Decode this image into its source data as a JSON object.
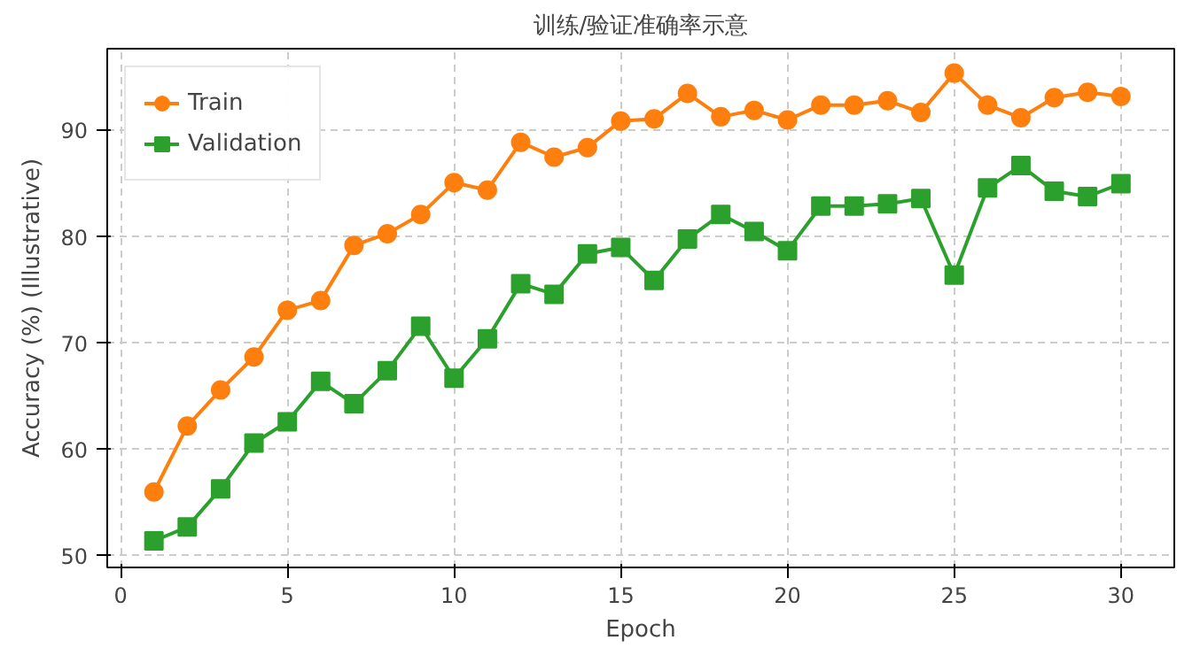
{
  "chart_data": {
    "type": "line",
    "title": "训练/验证准确率示意",
    "xlabel": "Epoch",
    "ylabel": "Accuracy (%) (Illustrative)",
    "x": [
      1,
      2,
      3,
      4,
      5,
      6,
      7,
      8,
      9,
      10,
      11,
      12,
      13,
      14,
      15,
      16,
      17,
      18,
      19,
      20,
      21,
      22,
      23,
      24,
      25,
      26,
      27,
      28,
      29,
      30
    ],
    "series": [
      {
        "name": "Train",
        "color": "#ff7f0e",
        "marker": "circle",
        "values": [
          56.0,
          62.2,
          65.6,
          68.7,
          73.1,
          74.0,
          79.2,
          80.3,
          82.1,
          85.1,
          84.4,
          88.9,
          87.5,
          88.4,
          90.9,
          91.1,
          93.5,
          91.3,
          91.9,
          91.0,
          92.4,
          92.4,
          92.8,
          91.7,
          95.4,
          92.4,
          91.2,
          93.1,
          93.6,
          93.2
        ]
      },
      {
        "name": "Validation",
        "color": "#2ca02c",
        "marker": "square",
        "values": [
          51.4,
          52.7,
          56.3,
          60.6,
          62.6,
          66.4,
          64.3,
          67.4,
          71.6,
          66.7,
          70.4,
          75.6,
          74.6,
          78.4,
          79.0,
          75.9,
          79.8,
          82.1,
          80.5,
          78.7,
          82.9,
          82.9,
          83.1,
          83.6,
          76.4,
          84.6,
          86.7,
          84.3,
          83.8,
          85.0
        ]
      }
    ],
    "xlim": [
      -0.4,
      31.6
    ],
    "ylim": [
      48.9,
      97.7
    ],
    "xticks": [
      0,
      5,
      10,
      15,
      20,
      25,
      30
    ],
    "yticks": [
      50,
      60,
      70,
      80,
      90
    ],
    "grid": true,
    "legend": "top left",
    "line_style": "solid"
  }
}
